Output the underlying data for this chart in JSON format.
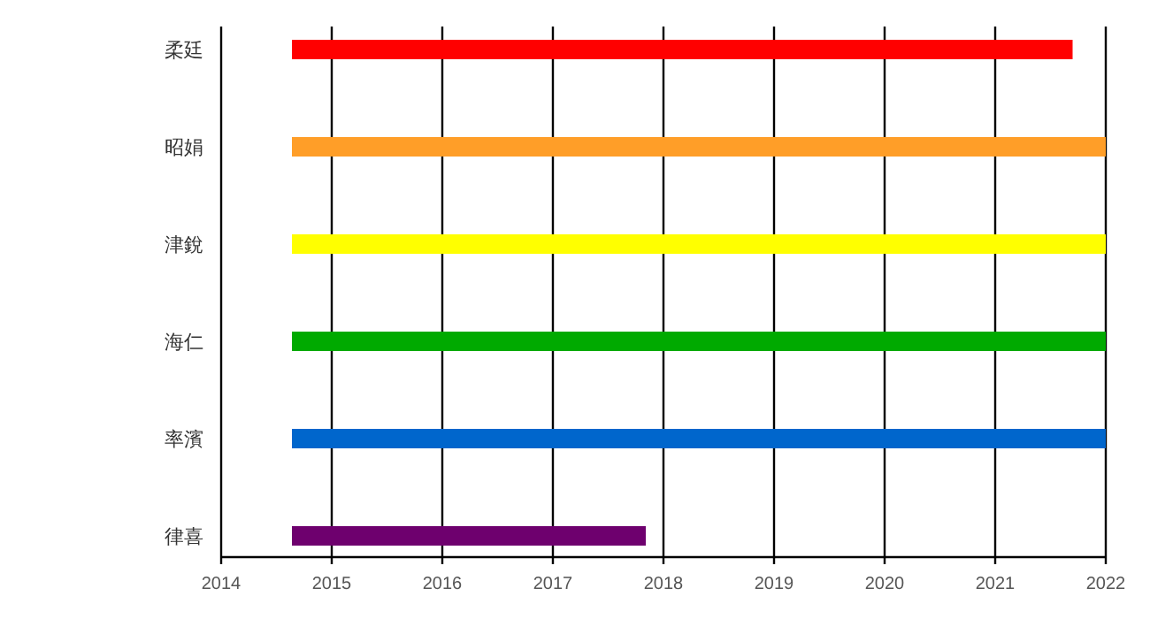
{
  "chart_data": {
    "type": "bar",
    "orientation": "horizontal",
    "categories": [
      "柔廷",
      "昭娟",
      "津銳",
      "海仁",
      "率濱",
      "律喜"
    ],
    "base": [
      2014.64,
      2014.64,
      2014.64,
      2014.64,
      2014.64,
      2014.64
    ],
    "values": [
      7.06,
      7.36,
      7.36,
      7.36,
      7.36,
      3.2
    ],
    "colors": [
      "#ff0000",
      "#ff9e28",
      "#ffff00",
      "#00aa00",
      "#0066cc",
      "#6e006e"
    ],
    "xlim": [
      2014,
      2022
    ],
    "xticks": [
      2014,
      2015,
      2016,
      2017,
      2018,
      2019,
      2020,
      2021,
      2022
    ],
    "grid": "x"
  }
}
